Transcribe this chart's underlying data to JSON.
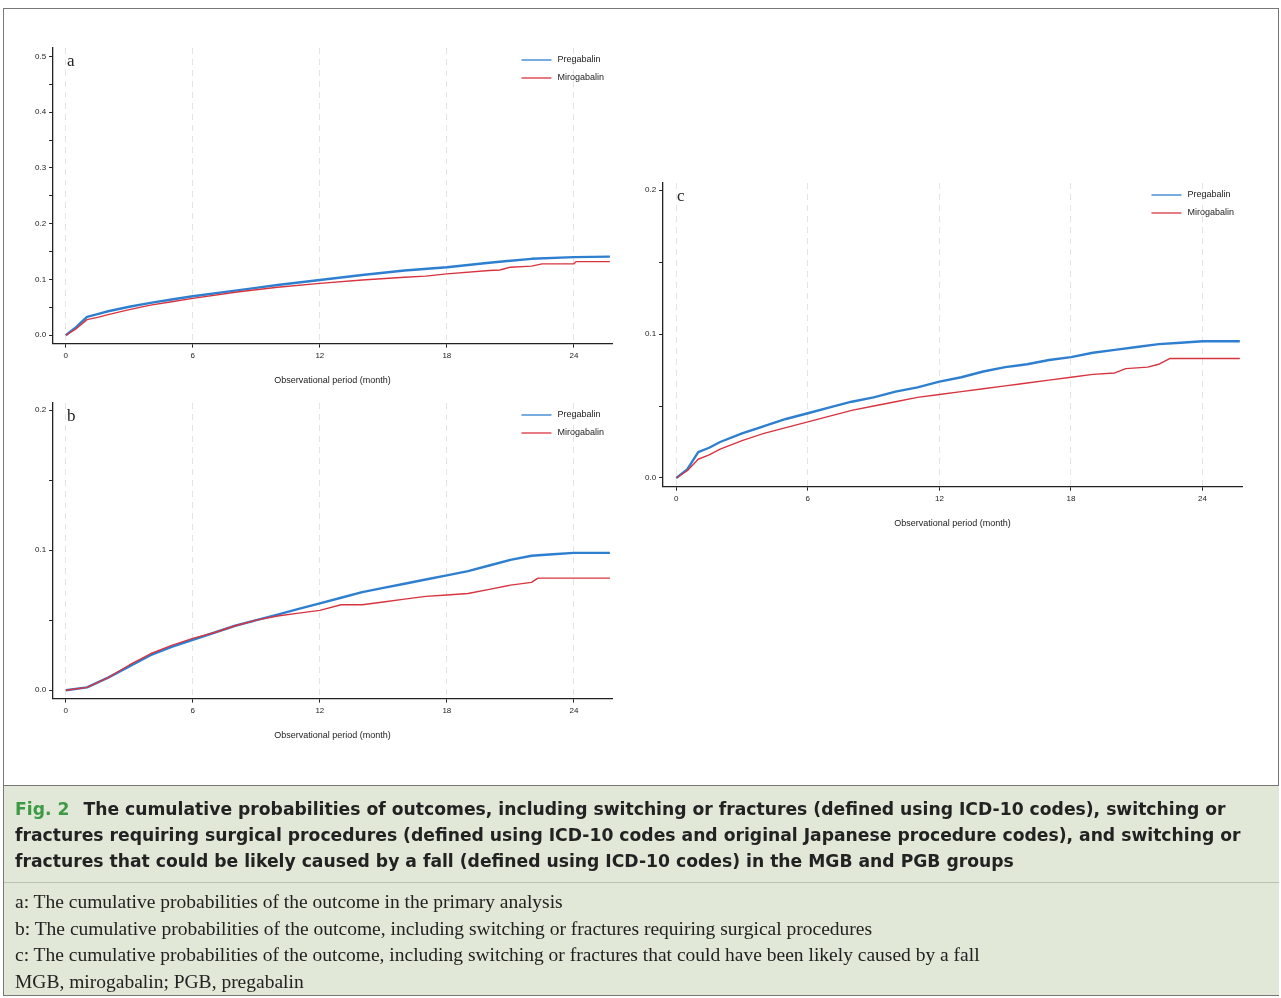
{
  "chart_data": [
    {
      "type": "line",
      "xlabel": "Observational period (month)",
      "annotations": [
        "a"
      ],
      "legend": "top right",
      "grid": "x",
      "line_style": "solid",
      "xlim": [
        -0.6,
        25.8
      ],
      "xticks": [
        0,
        6,
        12,
        18,
        24
      ],
      "ylim": [
        -0.015,
        0.515
      ],
      "yticks": [
        {
          "value": 0,
          "label": "0.0"
        },
        {
          "value": 0.05,
          "label": null
        },
        {
          "value": 0.1,
          "label": "0.1"
        },
        {
          "value": 0.15,
          "label": null
        },
        {
          "value": 0.2,
          "label": "0.2"
        },
        {
          "value": 0.25,
          "label": null
        },
        {
          "value": 0.3,
          "label": "0.3"
        },
        {
          "value": 0.35,
          "label": null
        },
        {
          "value": 0.4,
          "label": "0.4"
        },
        {
          "value": 0.45,
          "label": null
        },
        {
          "value": 0.5,
          "label": "0.5"
        }
      ],
      "series": [
        {
          "name": "Pregabalin",
          "color": "#2e7fd0",
          "x": [
            0,
            0.5,
            1,
            1.5,
            2,
            3,
            4,
            5,
            6,
            8,
            10,
            12,
            14,
            16,
            18,
            20,
            22,
            24,
            25.7
          ],
          "values": [
            0,
            0.015,
            0.033,
            0.038,
            0.043,
            0.051,
            0.058,
            0.064,
            0.07,
            0.08,
            0.09,
            0.099,
            0.108,
            0.116,
            0.122,
            0.13,
            0.137,
            0.14,
            0.141
          ]
        },
        {
          "name": "Mirogabalin",
          "color": "#d8343f",
          "x": [
            0,
            0.5,
            1,
            1.5,
            2,
            3,
            4,
            5,
            6,
            8,
            10,
            12,
            14,
            16,
            17,
            18,
            20,
            20.5,
            21,
            22,
            22.5,
            24,
            24.1,
            25.7
          ],
          "values": [
            0,
            0.012,
            0.028,
            0.032,
            0.037,
            0.046,
            0.054,
            0.06,
            0.066,
            0.077,
            0.086,
            0.093,
            0.099,
            0.104,
            0.106,
            0.11,
            0.116,
            0.117,
            0.122,
            0.124,
            0.128,
            0.128,
            0.132,
            0.132
          ]
        }
      ]
    },
    {
      "type": "line",
      "xlabel": "Observational period (month)",
      "annotations": [
        "b"
      ],
      "legend": "top right",
      "grid": "x",
      "line_style": "solid",
      "xlim": [
        -0.6,
        25.8
      ],
      "xticks": [
        0,
        6,
        12,
        18,
        24
      ],
      "ylim": [
        -0.006,
        0.205
      ],
      "yticks": [
        {
          "value": 0,
          "label": "0.0"
        },
        {
          "value": 0.05,
          "label": null
        },
        {
          "value": 0.1,
          "label": "0.1"
        },
        {
          "value": 0.15,
          "label": null
        },
        {
          "value": 0.2,
          "label": "0.2"
        }
      ],
      "series": [
        {
          "name": "Pregabalin",
          "color": "#2e7fd0",
          "x": [
            0,
            1,
            2,
            3,
            4,
            5,
            6,
            7,
            8,
            9,
            10,
            11,
            12,
            13,
            14,
            15,
            16,
            17,
            18,
            19,
            20,
            21,
            22,
            23,
            24,
            25.7
          ],
          "values": [
            0,
            0.002,
            0.009,
            0.017,
            0.025,
            0.031,
            0.036,
            0.041,
            0.046,
            0.05,
            0.054,
            0.058,
            0.062,
            0.066,
            0.07,
            0.073,
            0.076,
            0.079,
            0.082,
            0.085,
            0.089,
            0.093,
            0.096,
            0.097,
            0.098,
            0.098
          ]
        },
        {
          "name": "Mirogabalin",
          "color": "#d8343f",
          "x": [
            0,
            1,
            2,
            3,
            4,
            5,
            6,
            7,
            8,
            9,
            10,
            11,
            12,
            13,
            14,
            15,
            16,
            17,
            18,
            19,
            20,
            21,
            22,
            22.3,
            25.7
          ],
          "values": [
            0,
            0.002,
            0.009,
            0.018,
            0.026,
            0.032,
            0.037,
            0.041,
            0.046,
            0.05,
            0.053,
            0.055,
            0.057,
            0.061,
            0.061,
            0.063,
            0.065,
            0.067,
            0.068,
            0.069,
            0.072,
            0.075,
            0.077,
            0.08,
            0.08
          ]
        }
      ]
    },
    {
      "type": "line",
      "xlabel": "Observational period (month)",
      "annotations": [
        "c"
      ],
      "legend": "top right",
      "grid": "x",
      "line_style": "solid",
      "xlim": [
        -0.6,
        25.8
      ],
      "xticks": [
        0,
        6,
        12,
        18,
        24
      ],
      "ylim": [
        -0.006,
        0.205
      ],
      "yticks": [
        {
          "value": 0,
          "label": "0.0"
        },
        {
          "value": 0.05,
          "label": null
        },
        {
          "value": 0.1,
          "label": "0.1"
        },
        {
          "value": 0.15,
          "label": null
        },
        {
          "value": 0.2,
          "label": "0.2"
        }
      ],
      "series": [
        {
          "name": "Pregabalin",
          "color": "#2e7fd0",
          "x": [
            0,
            0.5,
            1,
            1.5,
            2,
            3,
            4,
            5,
            6,
            7,
            8,
            9,
            10,
            11,
            12,
            13,
            14,
            15,
            16,
            17,
            18,
            19,
            20,
            21,
            22,
            23,
            24,
            25.7
          ],
          "values": [
            0,
            0.006,
            0.018,
            0.021,
            0.025,
            0.031,
            0.036,
            0.041,
            0.045,
            0.049,
            0.053,
            0.056,
            0.06,
            0.063,
            0.067,
            0.07,
            0.074,
            0.077,
            0.079,
            0.082,
            0.084,
            0.087,
            0.089,
            0.091,
            0.093,
            0.094,
            0.095,
            0.095
          ]
        },
        {
          "name": "Mirogabalin",
          "color": "#d8343f",
          "x": [
            0,
            0.5,
            1,
            1.5,
            2,
            3,
            4,
            5,
            6,
            7,
            8,
            9,
            10,
            11,
            12,
            13,
            14,
            15,
            16,
            17,
            18,
            19,
            20,
            20.5,
            21.5,
            22,
            22.5,
            25.7
          ],
          "values": [
            0,
            0.005,
            0.013,
            0.016,
            0.02,
            0.026,
            0.031,
            0.035,
            0.039,
            0.043,
            0.047,
            0.05,
            0.053,
            0.056,
            0.058,
            0.06,
            0.062,
            0.064,
            0.066,
            0.068,
            0.07,
            0.072,
            0.073,
            0.076,
            0.077,
            0.079,
            0.083,
            0.083
          ]
        }
      ]
    },
    {
      "type": "other",
      "title": "Fig. 2",
      "subtitle": "The cumulative probabilities of outcomes, including switching or fractures (defined using ICD-10 codes), switching or fractures requiring surgical procedures (defined using ICD-10 codes and original Japanese procedure codes), and switching or fractures that could be likely caused by a fall (defined using ICD-10 codes) in the MGB and PGB groups",
      "annotations": [
        "a: The cumulative probabilities of the outcome in the primary analysis",
        "b: The cumulative probabilities of the outcome, including switching or fractures requiring surgical procedures",
        "c: The cumulative probabilities of the outcome, including switching or fractures that could have been likely caused by a fall",
        "MGB, mirogabalin; PGB, pregabalin"
      ]
    }
  ]
}
